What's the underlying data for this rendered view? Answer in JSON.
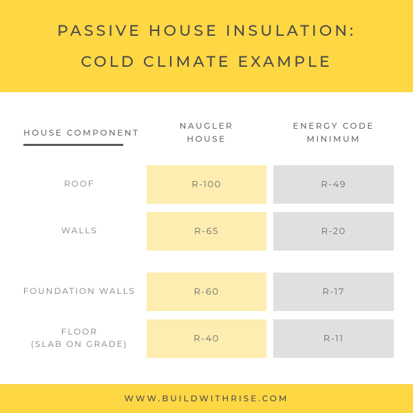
{
  "colors": {
    "header_bg": "#fed744",
    "title": "#4a4a4a",
    "head": "#6a6a6a",
    "underline": "#5a5a5a",
    "label": "#7a7a7a",
    "cell_a_bg": "#fdedb0",
    "cell_b_bg": "#e0e0e0",
    "cell_text": "#6a6a6a",
    "footer_bg": "#fed744",
    "footer_text": "#4a4a4a"
  },
  "header": {
    "line1": "PASSIVE HOUSE INSULATION:",
    "line2": "COLD CLIMATE EXAMPLE"
  },
  "table": {
    "columns": {
      "component": "HOUSE COMPONENT",
      "col_a": "NAUGLER\nHOUSE",
      "col_b": "ENERGY CODE\nMINIMUM"
    },
    "rows": [
      {
        "label": "ROOF",
        "a": "R-100",
        "b": "R-49",
        "gap_after": false
      },
      {
        "label": "WALLS",
        "a": "R-65",
        "b": "R-20",
        "gap_after": true
      },
      {
        "label": "FOUNDATION WALLS",
        "a": "R-60",
        "b": "R-17",
        "gap_after": false
      },
      {
        "label": "FLOOR\n(SLAB ON GRADE)",
        "a": "R-40",
        "b": "R-11",
        "gap_after": false
      }
    ]
  },
  "footer": {
    "text": "WWW.BUILDWITHRISE.COM"
  }
}
